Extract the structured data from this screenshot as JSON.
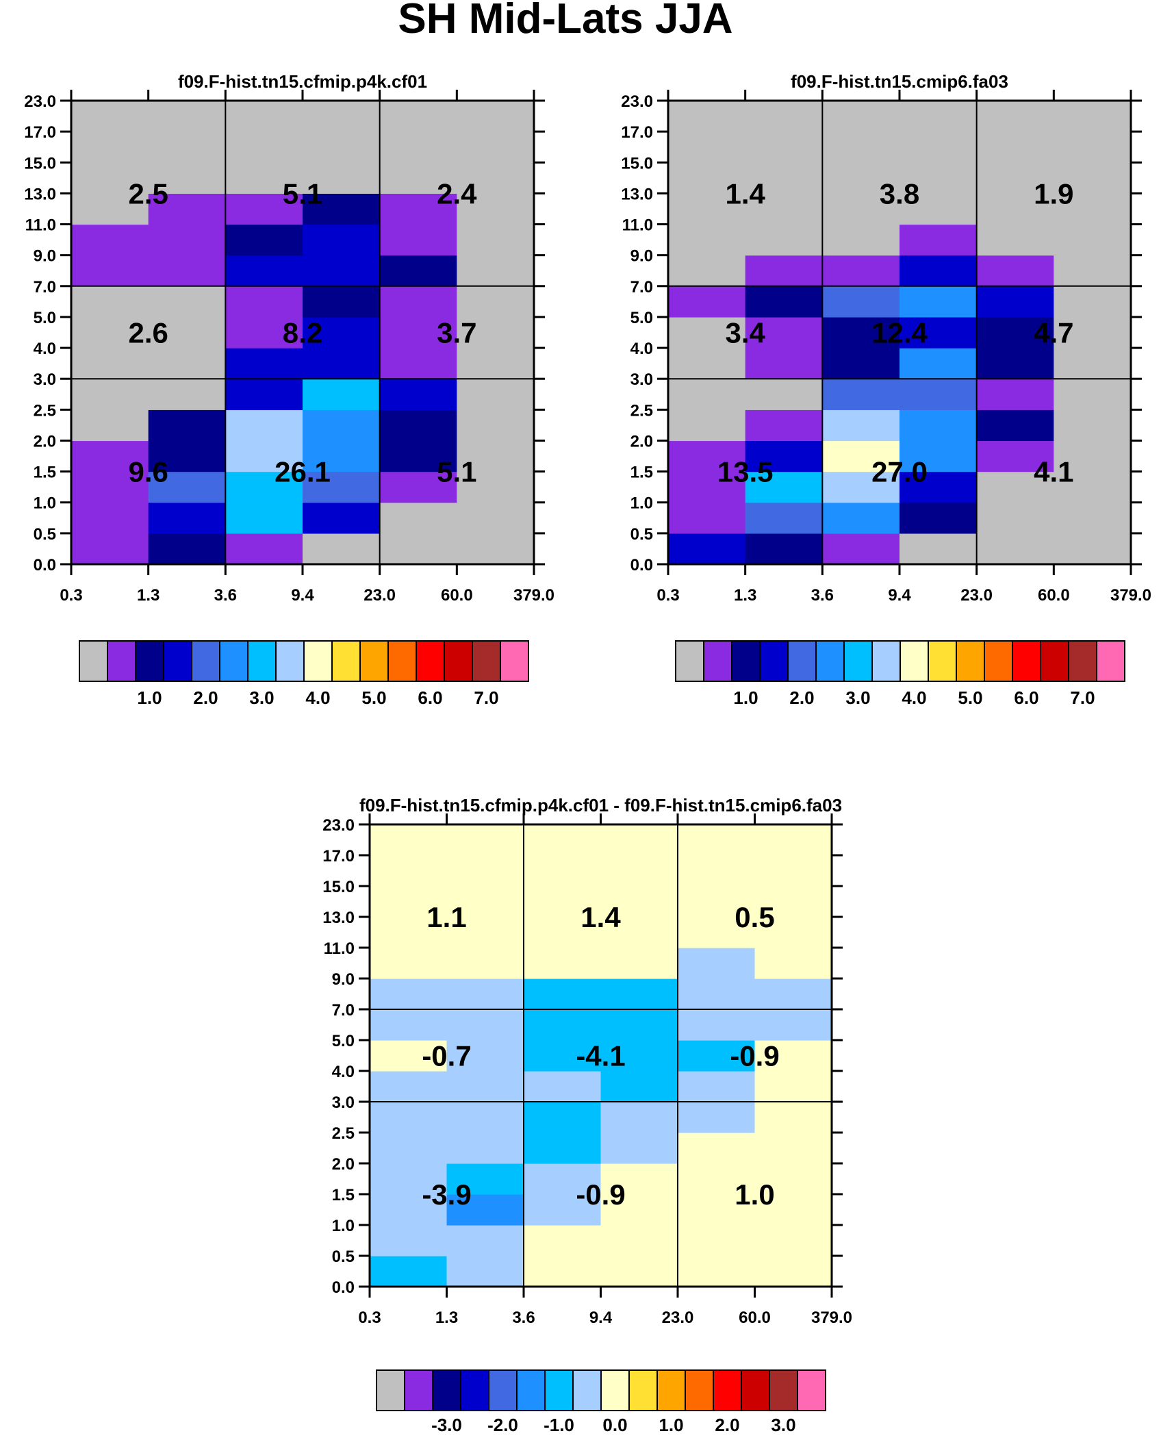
{
  "title": "SH Mid-Lats JJA",
  "palette": [
    "#c0c0c0",
    "#8a2be2",
    "#00008b",
    "#0000cd",
    "#4169e1",
    "#1e90ff",
    "#00bfff",
    "#a6cfff",
    "#ffffc8",
    "#ffe033",
    "#ffa500",
    "#ff6a00",
    "#ff0000",
    "#cd0000",
    "#a52a2a",
    "#ff69b4"
  ],
  "chart_data": [
    {
      "type": "heatmap",
      "title": "f09.F-hist.tn15.cfmip.p4k.cf01",
      "x_ticks": [
        "0.3",
        "1.3",
        "3.6",
        "9.4",
        "23.0",
        "60.0",
        "379.0"
      ],
      "y_ticks": [
        "0.0",
        "0.5",
        "1.0",
        "1.5",
        "2.0",
        "2.5",
        "3.0",
        "4.0",
        "5.0",
        "7.0",
        "9.0",
        "11.0",
        "13.0",
        "15.0",
        "17.0",
        "23.0"
      ],
      "cells": [
        [
          1,
          2,
          1,
          0,
          0,
          0
        ],
        [
          1,
          3,
          6,
          3,
          0,
          0
        ],
        [
          1,
          4,
          6,
          4,
          1,
          0
        ],
        [
          1,
          2,
          7,
          5,
          2,
          0
        ],
        [
          0,
          2,
          7,
          5,
          2,
          0
        ],
        [
          0,
          0,
          3,
          6,
          3,
          0
        ],
        [
          0,
          0,
          3,
          3,
          1,
          0
        ],
        [
          0,
          0,
          1,
          3,
          1,
          0
        ],
        [
          0,
          0,
          1,
          2,
          1,
          0
        ],
        [
          1,
          1,
          3,
          3,
          2,
          0
        ],
        [
          1,
          1,
          2,
          3,
          1,
          0
        ],
        [
          0,
          1,
          1,
          2,
          1,
          0
        ],
        [
          0,
          0,
          0,
          0,
          0,
          0
        ],
        [
          0,
          0,
          0,
          0,
          0,
          0
        ],
        [
          0,
          0,
          0,
          0,
          0,
          0
        ]
      ],
      "boxes": [
        {
          "row": 0,
          "col": 0,
          "label": "9.6"
        },
        {
          "row": 0,
          "col": 1,
          "label": "26.1"
        },
        {
          "row": 0,
          "col": 2,
          "label": "5.1"
        },
        {
          "row": 1,
          "col": 0,
          "label": "2.6"
        },
        {
          "row": 1,
          "col": 1,
          "label": "8.2"
        },
        {
          "row": 1,
          "col": 2,
          "label": "3.7"
        },
        {
          "row": 2,
          "col": 0,
          "label": "2.5"
        },
        {
          "row": 2,
          "col": 1,
          "label": "5.1"
        },
        {
          "row": 2,
          "col": 2,
          "label": "2.4"
        }
      ],
      "colorbar_labels": [
        "1.0",
        "2.0",
        "3.0",
        "4.0",
        "5.0",
        "6.0",
        "7.0"
      ]
    },
    {
      "type": "heatmap",
      "title": "f09.F-hist.tn15.cmip6.fa03",
      "x_ticks": [
        "0.3",
        "1.3",
        "3.6",
        "9.4",
        "23.0",
        "60.0",
        "379.0"
      ],
      "y_ticks": [
        "0.0",
        "0.5",
        "1.0",
        "1.5",
        "2.0",
        "2.5",
        "3.0",
        "4.0",
        "5.0",
        "7.0",
        "9.0",
        "11.0",
        "13.0",
        "15.0",
        "17.0",
        "23.0"
      ],
      "cells": [
        [
          3,
          2,
          1,
          0,
          0,
          0
        ],
        [
          1,
          4,
          5,
          2,
          0,
          0
        ],
        [
          1,
          6,
          7,
          3,
          0,
          0
        ],
        [
          1,
          3,
          8,
          5,
          1,
          0
        ],
        [
          0,
          1,
          7,
          5,
          2,
          0
        ],
        [
          0,
          0,
          4,
          4,
          1,
          0
        ],
        [
          0,
          1,
          2,
          5,
          2,
          0
        ],
        [
          0,
          1,
          2,
          3,
          2,
          0
        ],
        [
          1,
          2,
          4,
          5,
          3,
          0
        ],
        [
          0,
          1,
          1,
          3,
          1,
          0
        ],
        [
          0,
          0,
          0,
          1,
          0,
          0
        ],
        [
          0,
          0,
          0,
          0,
          0,
          0
        ],
        [
          0,
          0,
          0,
          0,
          0,
          0
        ],
        [
          0,
          0,
          0,
          0,
          0,
          0
        ],
        [
          0,
          0,
          0,
          0,
          0,
          0
        ]
      ],
      "boxes": [
        {
          "row": 0,
          "col": 0,
          "label": "13.5"
        },
        {
          "row": 0,
          "col": 1,
          "label": "27.0"
        },
        {
          "row": 0,
          "col": 2,
          "label": "4.1"
        },
        {
          "row": 1,
          "col": 0,
          "label": "3.4"
        },
        {
          "row": 1,
          "col": 1,
          "label": "12.4"
        },
        {
          "row": 1,
          "col": 2,
          "label": "4.7"
        },
        {
          "row": 2,
          "col": 0,
          "label": "1.4"
        },
        {
          "row": 2,
          "col": 1,
          "label": "3.8"
        },
        {
          "row": 2,
          "col": 2,
          "label": "1.9"
        }
      ],
      "colorbar_labels": [
        "1.0",
        "2.0",
        "3.0",
        "4.0",
        "5.0",
        "6.0",
        "7.0"
      ]
    },
    {
      "type": "heatmap",
      "title": "f09.F-hist.tn15.cfmip.p4k.cf01 - f09.F-hist.tn15.cmip6.fa03",
      "x_ticks": [
        "0.3",
        "1.3",
        "3.6",
        "9.4",
        "23.0",
        "60.0",
        "379.0"
      ],
      "y_ticks": [
        "0.0",
        "0.5",
        "1.0",
        "1.5",
        "2.0",
        "2.5",
        "3.0",
        "4.0",
        "5.0",
        "7.0",
        "9.0",
        "11.0",
        "13.0",
        "15.0",
        "17.0",
        "23.0"
      ],
      "cells": [
        [
          6,
          7,
          8,
          8,
          8,
          8
        ],
        [
          7,
          7,
          8,
          8,
          8,
          8
        ],
        [
          7,
          5,
          7,
          8,
          8,
          8
        ],
        [
          7,
          6,
          7,
          8,
          8,
          8
        ],
        [
          7,
          7,
          6,
          7,
          8,
          8
        ],
        [
          7,
          7,
          6,
          7,
          7,
          8
        ],
        [
          7,
          7,
          7,
          6,
          7,
          8
        ],
        [
          8,
          7,
          6,
          6,
          6,
          8
        ],
        [
          7,
          7,
          6,
          6,
          7,
          7
        ],
        [
          7,
          7,
          6,
          6,
          7,
          7
        ],
        [
          8,
          8,
          8,
          8,
          7,
          8
        ],
        [
          8,
          8,
          8,
          8,
          8,
          8
        ],
        [
          8,
          8,
          8,
          8,
          8,
          8
        ],
        [
          8,
          8,
          8,
          8,
          8,
          8
        ],
        [
          8,
          8,
          8,
          8,
          8,
          8
        ]
      ],
      "boxes": [
        {
          "row": 0,
          "col": 0,
          "label": "-3.9"
        },
        {
          "row": 0,
          "col": 1,
          "label": "-0.9"
        },
        {
          "row": 0,
          "col": 2,
          "label": "1.0"
        },
        {
          "row": 1,
          "col": 0,
          "label": "-0.7"
        },
        {
          "row": 1,
          "col": 1,
          "label": "-4.1"
        },
        {
          "row": 1,
          "col": 2,
          "label": "-0.9"
        },
        {
          "row": 2,
          "col": 0,
          "label": "1.1"
        },
        {
          "row": 2,
          "col": 1,
          "label": "1.4"
        },
        {
          "row": 2,
          "col": 2,
          "label": "0.5"
        }
      ],
      "colorbar_labels": [
        "-3.0",
        "-2.0",
        "-1.0",
        "0.0",
        "1.0",
        "2.0",
        "3.0"
      ]
    }
  ]
}
